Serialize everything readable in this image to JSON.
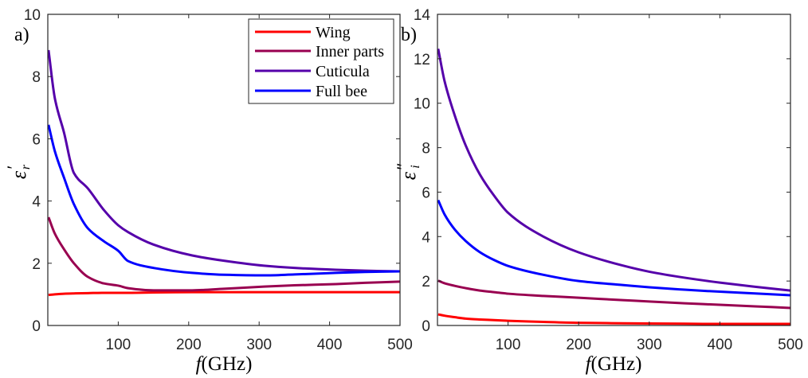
{
  "chart_data": [
    {
      "type": "line",
      "panel_label": "a)",
      "title": "",
      "xlabel": "f(GHz)",
      "xlabel_var": "f",
      "xlabel_unit": "(GHz)",
      "ylabel": "ε'_r",
      "ylabel_base": "ε",
      "ylabel_prime": "′",
      "ylabel_sub": "r",
      "xlim": [
        0,
        500
      ],
      "ylim": [
        0,
        10
      ],
      "xticks": [
        100,
        200,
        300,
        400,
        500
      ],
      "yticks": [
        0,
        2,
        4,
        6,
        8,
        10
      ],
      "grid": false,
      "legend": {
        "placement": "top-right",
        "entries": [
          "Wing",
          "Inner parts",
          "Cuticula",
          "Full bee"
        ]
      },
      "x": [
        1,
        10,
        23,
        37,
        57,
        80,
        100,
        114,
        150,
        205,
        250,
        307,
        350,
        409,
        450,
        500
      ],
      "series": [
        {
          "name": "Wing",
          "color": "#ff0000",
          "values": [
            0.98,
            1.0,
            1.02,
            1.03,
            1.04,
            1.05,
            1.05,
            1.05,
            1.06,
            1.07,
            1.07,
            1.07,
            1.07,
            1.07,
            1.07,
            1.07
          ]
        },
        {
          "name": "Inner parts",
          "color": "#990050",
          "values": [
            3.48,
            2.95,
            2.45,
            2.0,
            1.56,
            1.35,
            1.28,
            1.2,
            1.13,
            1.13,
            1.18,
            1.25,
            1.29,
            1.33,
            1.37,
            1.41
          ]
        },
        {
          "name": "Cuticula",
          "color": "#5500aa",
          "values": [
            8.85,
            7.3,
            6.2,
            4.9,
            4.4,
            3.7,
            3.22,
            3.0,
            2.6,
            2.25,
            2.08,
            1.92,
            1.85,
            1.79,
            1.76,
            1.74
          ]
        },
        {
          "name": "Full bee",
          "color": "#0000ff",
          "values": [
            6.45,
            5.6,
            4.75,
            3.9,
            3.12,
            2.7,
            2.4,
            2.07,
            1.85,
            1.69,
            1.63,
            1.61,
            1.64,
            1.69,
            1.72,
            1.74
          ]
        }
      ]
    },
    {
      "type": "line",
      "panel_label": "b)",
      "title": "",
      "xlabel": "f(GHz)",
      "xlabel_var": "f",
      "xlabel_unit": "(GHz)",
      "ylabel": "ε''_i",
      "ylabel_base": "ε",
      "ylabel_prime": "″",
      "ylabel_sub": "i",
      "xlim": [
        0,
        500
      ],
      "ylim": [
        0,
        14
      ],
      "xticks": [
        100,
        200,
        300,
        400,
        500
      ],
      "yticks": [
        0,
        2,
        4,
        6,
        8,
        10,
        12,
        14
      ],
      "grid": false,
      "x": [
        1,
        10,
        25,
        40,
        60,
        80,
        100,
        150,
        200,
        262,
        300,
        350,
        400,
        450,
        500
      ],
      "series": [
        {
          "name": "Wing",
          "color": "#ff0000",
          "values": [
            0.5,
            0.44,
            0.37,
            0.31,
            0.27,
            0.24,
            0.21,
            0.16,
            0.12,
            0.1,
            0.09,
            0.08,
            0.07,
            0.07,
            0.07
          ]
        },
        {
          "name": "Inner parts",
          "color": "#990050",
          "values": [
            2.02,
            1.9,
            1.78,
            1.68,
            1.57,
            1.5,
            1.43,
            1.33,
            1.25,
            1.14,
            1.08,
            1.0,
            0.93,
            0.86,
            0.79
          ]
        },
        {
          "name": "Cuticula",
          "color": "#5500aa",
          "values": [
            12.45,
            11.0,
            9.4,
            8.1,
            6.8,
            5.85,
            5.07,
            4.0,
            3.29,
            2.7,
            2.42,
            2.15,
            1.93,
            1.74,
            1.57
          ]
        },
        {
          "name": "Full bee",
          "color": "#0000ff",
          "values": [
            5.64,
            5.0,
            4.3,
            3.8,
            3.3,
            2.95,
            2.68,
            2.28,
            2.0,
            1.82,
            1.72,
            1.61,
            1.52,
            1.44,
            1.36
          ]
        }
      ]
    }
  ]
}
